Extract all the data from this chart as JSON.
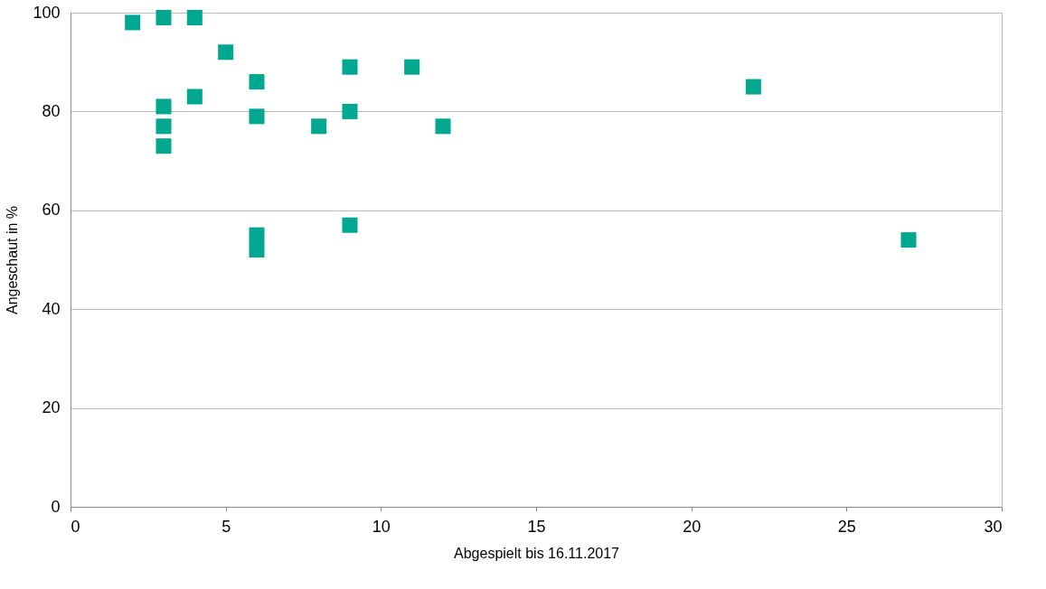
{
  "chart_data": {
    "type": "scatter",
    "xlabel": "Abgespielt bis 16.11.2017",
    "ylabel": "Angeschaut in %",
    "x": [
      2,
      3,
      4,
      5,
      3,
      3,
      3,
      4,
      6,
      6,
      6,
      6,
      8,
      9,
      9,
      9,
      11,
      12,
      22,
      27
    ],
    "values": [
      98,
      99,
      99,
      92,
      81,
      77,
      73,
      83,
      86,
      79,
      55,
      52,
      77,
      89,
      80,
      57,
      89,
      77,
      85,
      54
    ],
    "color": "#00a88f",
    "marker": "square",
    "xlim": [
      0,
      30
    ],
    "xticks": [
      0,
      5,
      10,
      15,
      20,
      25,
      30
    ],
    "ylim": [
      0,
      100
    ],
    "yticks": [
      0,
      20,
      40,
      60,
      80,
      100
    ],
    "grid": "y"
  }
}
